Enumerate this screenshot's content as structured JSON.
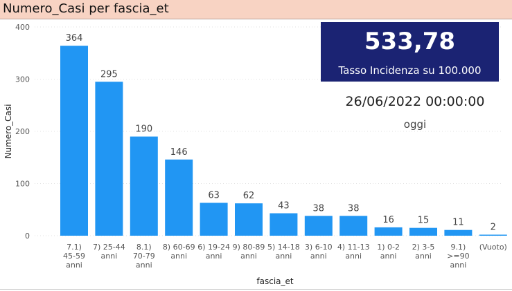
{
  "title": "Numero_Casi per fascia_et",
  "kpi": {
    "value": "533,78",
    "label": "Tasso Incidenza su 100.000"
  },
  "date": {
    "value": "26/06/2022 00:00:00",
    "label": "oggi"
  },
  "chart_data": {
    "type": "bar",
    "xlabel": "fascia_et",
    "ylabel": "Numero_Casi",
    "ylim": [
      0,
      400
    ],
    "yticks": [
      0,
      100,
      200,
      300,
      400
    ],
    "grid": true,
    "bar_color": "#2196f3",
    "categories": [
      "7.1) 45-59 anni",
      "7) 25-44 anni",
      "8.1) 70-79 anni",
      "8) 60-69 anni",
      "6) 19-24 anni",
      "9) 80-89 anni",
      "5) 14-18 anni",
      "3) 6-10 anni",
      "4) 11-13 anni",
      "1) 0-2 anni",
      "2) 3-5 anni",
      "9.1) >=90 anni",
      "(Vuoto)"
    ],
    "category_lines": [
      [
        "7.1)",
        "45-59",
        "anni"
      ],
      [
        "7) 25-44",
        "anni"
      ],
      [
        "8.1)",
        "70-79",
        "anni"
      ],
      [
        "8) 60-69",
        "anni"
      ],
      [
        "6) 19-24",
        "anni"
      ],
      [
        "9) 80-89",
        "anni"
      ],
      [
        "5) 14-18",
        "anni"
      ],
      [
        "3) 6-10",
        "anni"
      ],
      [
        "4) 11-13",
        "anni"
      ],
      [
        "1) 0-2",
        "anni"
      ],
      [
        "2) 3-5",
        "anni"
      ],
      [
        "9.1)",
        ">=90",
        "anni"
      ],
      [
        "(Vuoto)"
      ]
    ],
    "values": [
      364,
      295,
      190,
      146,
      63,
      62,
      43,
      38,
      38,
      16,
      15,
      11,
      2
    ]
  }
}
